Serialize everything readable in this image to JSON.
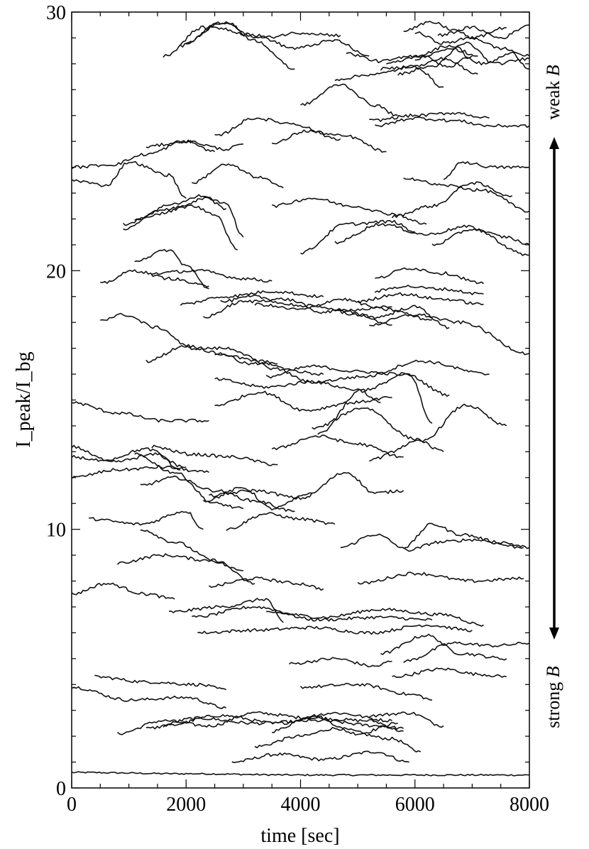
{
  "chart_data": {
    "type": "line",
    "title": "",
    "xlabel": "time [sec]",
    "ylabel": "I_peak/I_bg",
    "xlim": [
      0,
      8000
    ],
    "ylim": [
      0,
      30
    ],
    "x_ticks": [
      0,
      2000,
      4000,
      6000,
      8000
    ],
    "y_ticks": [
      0,
      10,
      20,
      30
    ],
    "x_tick_labels": [
      "0",
      "2000",
      "4000",
      "6000",
      "8000"
    ],
    "y_tick_labels": [
      "0",
      "10",
      "20",
      "30"
    ],
    "grid": false,
    "annotations": {
      "weak_prefix": "weak ",
      "strong_prefix": "strong ",
      "b_symbol": "B"
    },
    "series": [
      {
        "x": [
          0,
          2000,
          4000,
          6000,
          8000
        ],
        "y": [
          0.6,
          0.55,
          0.5,
          0.5,
          0.5
        ]
      },
      {
        "x": [
          2800,
          3600,
          4400,
          5300,
          5900
        ],
        "y": [
          1.0,
          1.3,
          1.1,
          1.4,
          1.0
        ]
      },
      {
        "x": [
          3200,
          4000,
          4600,
          5600,
          6100
        ],
        "y": [
          1.6,
          2.0,
          2.3,
          1.9,
          1.4
        ]
      },
      {
        "x": [
          3500,
          4200,
          5000,
          5700
        ],
        "y": [
          2.2,
          2.8,
          2.1,
          2.5
        ]
      },
      {
        "x": [
          800,
          1600,
          2400,
          3200,
          4200,
          5200,
          5800
        ],
        "y": [
          2.1,
          2.6,
          2.4,
          2.9,
          2.7,
          2.6,
          2.2
        ]
      },
      {
        "x": [
          1300,
          2200,
          3200,
          4300,
          5400,
          5800
        ],
        "y": [
          2.3,
          2.7,
          2.5,
          2.6,
          2.4,
          2.3
        ]
      },
      {
        "x": [
          1600,
          2600,
          3600,
          4600,
          5600
        ],
        "y": [
          2.4,
          2.8,
          2.5,
          2.9,
          2.6
        ]
      },
      {
        "x": [
          5200,
          5900,
          6500
        ],
        "y": [
          2.8,
          2.9,
          2.4
        ]
      },
      {
        "x": [
          0,
          1000,
          2000,
          2700
        ],
        "y": [
          3.9,
          3.4,
          3.5,
          3.1
        ]
      },
      {
        "x": [
          400,
          1300,
          2200,
          2700
        ],
        "y": [
          4.3,
          4.1,
          4.0,
          3.8
        ]
      },
      {
        "x": [
          4000,
          5000,
          6000,
          6300
        ],
        "y": [
          3.9,
          4.0,
          3.6,
          3.4
        ]
      },
      {
        "x": [
          3800,
          4600,
          5300,
          5600
        ],
        "y": [
          4.8,
          5.0,
          4.7,
          4.9
        ]
      },
      {
        "x": [
          5600,
          6500,
          7100,
          7600
        ],
        "y": [
          4.3,
          4.6,
          4.4,
          4.3
        ]
      },
      {
        "x": [
          5800,
          6700,
          7400,
          8000
        ],
        "y": [
          4.9,
          5.6,
          5.5,
          5.6
        ]
      },
      {
        "x": [
          5400,
          6200,
          6800,
          7600
        ],
        "y": [
          5.2,
          5.9,
          5.2,
          5.0
        ]
      },
      {
        "x": [
          2200,
          3200,
          4200,
          5200,
          6200,
          7000
        ],
        "y": [
          6.0,
          6.1,
          6.2,
          6.0,
          6.3,
          6.1
        ]
      },
      {
        "x": [
          2100,
          3200,
          4300,
          5400,
          6300
        ],
        "y": [
          6.6,
          7.0,
          6.5,
          6.6,
          6.5
        ]
      },
      {
        "x": [
          1700,
          2600,
          3400,
          3700
        ],
        "y": [
          6.8,
          7.0,
          7.3,
          6.4
        ]
      },
      {
        "x": [
          3400,
          4400,
          5400,
          6500,
          7200
        ],
        "y": [
          6.8,
          6.6,
          6.9,
          6.7,
          6.3
        ]
      },
      {
        "x": [
          0,
          600,
          1300,
          1800
        ],
        "y": [
          7.5,
          7.9,
          7.5,
          7.3
        ]
      },
      {
        "x": [
          2400,
          3200,
          4000,
          4400
        ],
        "y": [
          7.8,
          8.1,
          7.9,
          7.7
        ]
      },
      {
        "x": [
          5000,
          6000,
          7000,
          7900
        ],
        "y": [
          7.9,
          8.3,
          8.0,
          8.1
        ]
      },
      {
        "x": [
          800,
          1600,
          2400,
          3000
        ],
        "y": [
          8.7,
          9.0,
          8.8,
          8.4
        ]
      },
      {
        "x": [
          1200,
          1800,
          2500,
          3200
        ],
        "y": [
          10.0,
          9.5,
          8.8,
          7.9
        ]
      },
      {
        "x": [
          4700,
          5300,
          5900,
          6400,
          7000,
          7900
        ],
        "y": [
          9.3,
          9.8,
          9.2,
          9.5,
          9.6,
          9.3
        ]
      },
      {
        "x": [
          5800,
          6300,
          6800,
          7500,
          8000
        ],
        "y": [
          9.3,
          10.2,
          9.8,
          9.5,
          9.3
        ]
      },
      {
        "x": [
          300,
          1200,
          2000,
          2300
        ],
        "y": [
          10.4,
          10.2,
          10.7,
          10.0
        ]
      },
      {
        "x": [
          2700,
          3400,
          4000,
          4600
        ],
        "y": [
          10.0,
          10.6,
          10.4,
          10.2
        ]
      },
      {
        "x": [
          1100,
          1800,
          2500,
          3000
        ],
        "y": [
          12.9,
          12.2,
          11.0,
          10.8
        ]
      },
      {
        "x": [
          1200,
          1800,
          2500,
          3200,
          3900
        ],
        "y": [
          11.7,
          12.0,
          11.5,
          11.1,
          10.7
        ]
      },
      {
        "x": [
          2400,
          3200,
          4000,
          4800,
          5300,
          5800
        ],
        "y": [
          11.3,
          11.5,
          11.2,
          12.2,
          11.4,
          11.5
        ]
      },
      {
        "x": [
          2300,
          3000,
          3500,
          4200
        ],
        "y": [
          11.1,
          11.6,
          10.8,
          11.4
        ]
      },
      {
        "x": [
          1400,
          2100,
          2800,
          3600
        ],
        "y": [
          13.2,
          12.9,
          12.8,
          12.5
        ]
      },
      {
        "x": [
          0,
          800,
          1600,
          2400
        ],
        "y": [
          12.0,
          12.3,
          12.4,
          12.2
        ]
      },
      {
        "x": [
          0,
          700,
          1500,
          1900
        ],
        "y": [
          12.8,
          12.6,
          12.9,
          12.3
        ]
      },
      {
        "x": [
          0,
          600,
          1300,
          2000
        ],
        "y": [
          13.2,
          12.7,
          13.1,
          12.4
        ]
      },
      {
        "x": [
          0,
          800,
          1600,
          2400
        ],
        "y": [
          14.9,
          14.5,
          14.2,
          14.2
        ]
      },
      {
        "x": [
          3500,
          4300,
          5000,
          5800
        ],
        "y": [
          13.1,
          13.6,
          13.3,
          12.8
        ]
      },
      {
        "x": [
          4200,
          5100,
          6000,
          6500
        ],
        "y": [
          13.9,
          14.7,
          13.5,
          13.0
        ]
      },
      {
        "x": [
          5200,
          6100,
          6900,
          7600
        ],
        "y": [
          12.7,
          13.4,
          14.8,
          14.0
        ]
      },
      {
        "x": [
          4300,
          5100,
          5900,
          6300
        ],
        "y": [
          13.7,
          15.4,
          16.0,
          14.1
        ]
      },
      {
        "x": [
          2500,
          3300,
          4100,
          4900,
          5600
        ],
        "y": [
          14.8,
          15.3,
          14.6,
          14.9,
          15.1
        ]
      },
      {
        "x": [
          2500,
          3400,
          4200,
          5000,
          5400
        ],
        "y": [
          15.8,
          15.5,
          15.7,
          15.4,
          14.9
        ]
      },
      {
        "x": [
          3400,
          4200,
          5000,
          5800,
          6600
        ],
        "y": [
          15.9,
          16.3,
          16.1,
          16.0,
          15.2
        ]
      },
      {
        "x": [
          1300,
          2000,
          2600,
          3100,
          3600
        ],
        "y": [
          16.5,
          17.1,
          16.8,
          16.4,
          16.4
        ]
      },
      {
        "x": [
          2500,
          3300,
          4200,
          5100,
          6100,
          7300
        ],
        "y": [
          16.8,
          16.5,
          15.7,
          15.9,
          16.5,
          16.0
        ]
      },
      {
        "x": [
          500,
          900,
          1500,
          2100,
          2700,
          3600,
          4400
        ],
        "y": [
          18.1,
          18.3,
          17.8,
          17.0,
          17.0,
          16.2,
          16.0
        ]
      },
      {
        "x": [
          4600,
          5300,
          6000,
          6600
        ],
        "y": [
          18.5,
          18.2,
          18.6,
          17.8
        ]
      },
      {
        "x": [
          5200,
          6000,
          6800,
          8000
        ],
        "y": [
          17.9,
          18.3,
          18.0,
          16.8
        ]
      },
      {
        "x": [
          2600,
          3200,
          3800,
          4400,
          5000,
          5600
        ],
        "y": [
          18.8,
          19.0,
          18.7,
          18.4,
          18.5,
          18.6
        ]
      },
      {
        "x": [
          2300,
          3000,
          3700,
          4300,
          5000,
          5600
        ],
        "y": [
          18.2,
          18.8,
          18.9,
          18.6,
          18.3,
          17.9
        ]
      },
      {
        "x": [
          3200,
          4000,
          4700,
          5500,
          6300
        ],
        "y": [
          18.7,
          18.5,
          18.9,
          18.5,
          18.1
        ]
      },
      {
        "x": [
          5000,
          5700,
          6500,
          7200
        ],
        "y": [
          18.8,
          19.1,
          18.9,
          18.7
        ]
      },
      {
        "x": [
          5300,
          5800,
          6400,
          7200
        ],
        "y": [
          19.2,
          19.4,
          19.3,
          19.1
        ]
      },
      {
        "x": [
          1900,
          2700,
          3500,
          4400
        ],
        "y": [
          18.7,
          19.0,
          19.2,
          19.0
        ]
      },
      {
        "x": [
          5300,
          5900,
          6500,
          7200
        ],
        "y": [
          19.7,
          20.1,
          19.9,
          19.5
        ]
      },
      {
        "x": [
          500,
          1100,
          1700,
          2400
        ],
        "y": [
          19.5,
          20.0,
          19.7,
          19.4
        ]
      },
      {
        "x": [
          1100,
          1700,
          2000,
          2400
        ],
        "y": [
          20.4,
          20.8,
          20.2,
          19.3
        ]
      },
      {
        "x": [
          1400,
          2200,
          3000,
          3500
        ],
        "y": [
          19.9,
          20.0,
          19.7,
          19.6
        ]
      },
      {
        "x": [
          4000,
          4800,
          5600,
          6000
        ],
        "y": [
          20.7,
          21.8,
          21.9,
          21.5
        ]
      },
      {
        "x": [
          4600,
          5400,
          6200,
          6900,
          8000
        ],
        "y": [
          21.1,
          21.8,
          21.4,
          21.7,
          20.6
        ]
      },
      {
        "x": [
          6300,
          7000,
          7600,
          8000
        ],
        "y": [
          21.0,
          21.6,
          21.3,
          21.0
        ]
      },
      {
        "x": [
          5600,
          6300,
          7000,
          7700
        ],
        "y": [
          22.1,
          22.5,
          23.4,
          22.9
        ]
      },
      {
        "x": [
          3500,
          4200,
          4900,
          5600,
          6200
        ],
        "y": [
          22.5,
          22.8,
          22.5,
          22.2,
          21.8
        ]
      },
      {
        "x": [
          900,
          1500,
          2100,
          2500,
          2900
        ],
        "y": [
          21.6,
          22.2,
          22.5,
          22.2,
          20.8
        ]
      },
      {
        "x": [
          1100,
          1800,
          2300,
          2700
        ],
        "y": [
          22.0,
          22.6,
          22.9,
          22.4
        ]
      },
      {
        "x": [
          900,
          1700,
          2400,
          2700,
          3000
        ],
        "y": [
          21.8,
          22.4,
          22.8,
          22.6,
          21.3
        ]
      },
      {
        "x": [
          2100,
          2700,
          3300,
          3700
        ],
        "y": [
          23.4,
          24.1,
          23.6,
          23.2
        ]
      },
      {
        "x": [
          5800,
          6500,
          7200,
          8000
        ],
        "y": [
          23.6,
          23.3,
          23.1,
          22.3
        ]
      },
      {
        "x": [
          6500,
          6800,
          7400,
          8000
        ],
        "y": [
          23.5,
          24.2,
          24.0,
          24.0
        ]
      },
      {
        "x": [
          0,
          600,
          1000,
          1700,
          2000
        ],
        "y": [
          23.5,
          23.3,
          24.2,
          23.7,
          22.8
        ]
      },
      {
        "x": [
          0,
          700,
          1300,
          2000,
          2500
        ],
        "y": [
          24.0,
          24.1,
          24.5,
          25.0,
          24.6
        ]
      },
      {
        "x": [
          1300,
          2000,
          2700,
          3000
        ],
        "y": [
          24.8,
          25.0,
          24.7,
          24.9
        ]
      },
      {
        "x": [
          2500,
          3200,
          3800,
          4700
        ],
        "y": [
          25.2,
          25.9,
          25.7,
          25.1
        ]
      },
      {
        "x": [
          3500,
          4100,
          4800,
          5500
        ],
        "y": [
          24.9,
          25.4,
          25.2,
          24.6
        ]
      },
      {
        "x": [
          5200,
          6000,
          6700,
          7300
        ],
        "y": [
          25.8,
          26.0,
          26.1,
          25.9
        ]
      },
      {
        "x": [
          5300,
          6000,
          6700,
          7300,
          8000
        ],
        "y": [
          25.6,
          25.9,
          25.8,
          25.6,
          25.6
        ]
      },
      {
        "x": [
          4000,
          4700,
          5300,
          5700
        ],
        "y": [
          26.4,
          27.2,
          26.4,
          26.0
        ]
      },
      {
        "x": [
          5400,
          6000,
          6500,
          7100
        ],
        "y": [
          27.8,
          27.9,
          28.2,
          27.6
        ]
      },
      {
        "x": [
          4600,
          5300,
          6000,
          6500
        ],
        "y": [
          27.4,
          27.6,
          27.9,
          27.1
        ]
      },
      {
        "x": [
          4800,
          5400,
          6000,
          6600,
          7100
        ],
        "y": [
          28.4,
          28.1,
          28.3,
          28.7,
          28.3
        ]
      },
      {
        "x": [
          5500,
          6100,
          6600,
          7000
        ],
        "y": [
          28.0,
          28.3,
          27.9,
          28.3
        ]
      },
      {
        "x": [
          5700,
          6300,
          6900,
          7400,
          8000
        ],
        "y": [
          27.6,
          27.9,
          28.8,
          28.0,
          28.2
        ]
      },
      {
        "x": [
          6000,
          6600,
          7200,
          7700,
          8000
        ],
        "y": [
          28.2,
          28.6,
          28.0,
          28.4,
          27.8
        ]
      },
      {
        "x": [
          5800,
          6300,
          6700,
          7000,
          7600
        ],
        "y": [
          29.3,
          29.6,
          29.3,
          29.0,
          29.4
        ]
      },
      {
        "x": [
          6000,
          6500,
          7000,
          7500,
          8000
        ],
        "y": [
          29.2,
          28.8,
          29.0,
          28.6,
          28.3
        ]
      },
      {
        "x": [
          6400,
          7000,
          7500,
          8000
        ],
        "y": [
          29.1,
          29.4,
          29.0,
          29.5
        ]
      },
      {
        "x": [
          1600,
          2300,
          2700,
          3200,
          3900
        ],
        "y": [
          28.3,
          29.4,
          29.6,
          28.9,
          27.8
        ]
      },
      {
        "x": [
          1900,
          2500,
          3200,
          3900,
          4600,
          5200
        ],
        "y": [
          28.7,
          29.4,
          29.1,
          28.6,
          28.9,
          28.3
        ]
      },
      {
        "x": [
          2000,
          2600,
          3300,
          4000,
          4700
        ],
        "y": [
          28.8,
          29.6,
          29.0,
          29.2,
          29.1
        ]
      }
    ]
  }
}
